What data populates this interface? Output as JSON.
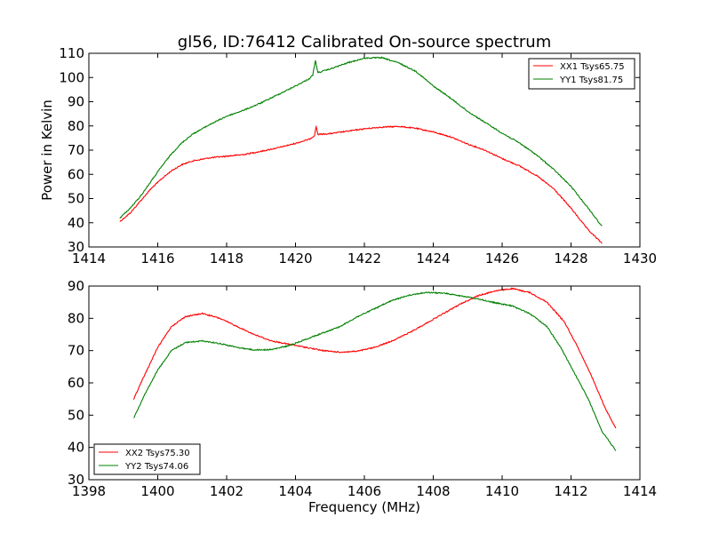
{
  "chart_data": [
    {
      "type": "line",
      "title": "gl56, ID:76412 Calibrated On-source spectrum",
      "xlabel": "",
      "ylabel": "Power in Kelvin",
      "xlim": [
        1414,
        1430
      ],
      "ylim": [
        30,
        110
      ],
      "xticks": [
        1414,
        1416,
        1418,
        1420,
        1422,
        1424,
        1426,
        1428,
        1430
      ],
      "yticks": [
        30,
        40,
        50,
        60,
        70,
        80,
        90,
        100,
        110
      ],
      "grid": false,
      "legend_position": "top-right",
      "series": [
        {
          "name": "XX1 Tsys65.75",
          "color": "#ff0000",
          "points": [
            [
              1414.9,
              40.5
            ],
            [
              1415.2,
              44
            ],
            [
              1415.5,
              49
            ],
            [
              1415.8,
              54
            ],
            [
              1416.1,
              58
            ],
            [
              1416.4,
              61.5
            ],
            [
              1416.7,
              64
            ],
            [
              1417,
              65.5
            ],
            [
              1417.5,
              66.8
            ],
            [
              1418,
              67.5
            ],
            [
              1418.5,
              68.2
            ],
            [
              1419,
              69.5
            ],
            [
              1419.5,
              71
            ],
            [
              1420,
              72.8
            ],
            [
              1420.4,
              74.5
            ],
            [
              1420.55,
              76
            ],
            [
              1420.6,
              79.8
            ],
            [
              1420.65,
              76.5
            ],
            [
              1421,
              76.8
            ],
            [
              1421.5,
              77.8
            ],
            [
              1422,
              78.8
            ],
            [
              1422.5,
              79.5
            ],
            [
              1423,
              79.8
            ],
            [
              1423.5,
              79
            ],
            [
              1424,
              77.5
            ],
            [
              1424.5,
              75.5
            ],
            [
              1425,
              72.5
            ],
            [
              1425.5,
              70
            ],
            [
              1426,
              66.5
            ],
            [
              1426.5,
              63.5
            ],
            [
              1427,
              59.5
            ],
            [
              1427.5,
              54
            ],
            [
              1428,
              46
            ],
            [
              1428.5,
              37
            ],
            [
              1428.9,
              31.5
            ]
          ]
        },
        {
          "name": "YY1 Tsys81.75",
          "color": "#008000",
          "points": [
            [
              1414.9,
              42
            ],
            [
              1415.2,
              46
            ],
            [
              1415.5,
              51
            ],
            [
              1415.8,
              57
            ],
            [
              1416.1,
              63
            ],
            [
              1416.4,
              68.5
            ],
            [
              1416.7,
              73
            ],
            [
              1417,
              76.5
            ],
            [
              1417.5,
              80.5
            ],
            [
              1418,
              84
            ],
            [
              1418.5,
              86.5
            ],
            [
              1419,
              89.5
            ],
            [
              1419.5,
              93
            ],
            [
              1420,
              96.5
            ],
            [
              1420.4,
              99.5
            ],
            [
              1420.5,
              101
            ],
            [
              1420.58,
              107
            ],
            [
              1420.65,
              102
            ],
            [
              1421,
              103.5
            ],
            [
              1421.5,
              106
            ],
            [
              1422,
              108
            ],
            [
              1422.5,
              108.2
            ],
            [
              1423,
              106
            ],
            [
              1423.5,
              102.5
            ],
            [
              1424,
              96.5
            ],
            [
              1424.5,
              91.5
            ],
            [
              1425,
              86
            ],
            [
              1425.5,
              81.5
            ],
            [
              1426,
              77
            ],
            [
              1426.5,
              73
            ],
            [
              1427,
              68
            ],
            [
              1427.5,
              62
            ],
            [
              1428,
              55
            ],
            [
              1428.5,
              46
            ],
            [
              1428.9,
              38.5
            ]
          ]
        }
      ]
    },
    {
      "type": "line",
      "title": "",
      "xlabel": "Frequency (MHz)",
      "ylabel": "",
      "xlim": [
        1398,
        1414
      ],
      "ylim": [
        30,
        90
      ],
      "xticks": [
        1398,
        1400,
        1402,
        1404,
        1406,
        1408,
        1410,
        1412,
        1414
      ],
      "yticks": [
        30,
        40,
        50,
        60,
        70,
        80,
        90
      ],
      "grid": false,
      "legend_position": "bottom-left",
      "series": [
        {
          "name": "XX2 Tsys75.30",
          "color": "#ff0000",
          "points": [
            [
              1399.3,
              55
            ],
            [
              1399.6,
              62
            ],
            [
              1400,
              71
            ],
            [
              1400.4,
              77.5
            ],
            [
              1400.8,
              80.5
            ],
            [
              1401.3,
              81.5
            ],
            [
              1401.8,
              80
            ],
            [
              1402.3,
              77.5
            ],
            [
              1402.8,
              75
            ],
            [
              1403.3,
              73
            ],
            [
              1403.8,
              72
            ],
            [
              1404.3,
              71
            ],
            [
              1404.8,
              70
            ],
            [
              1405.3,
              69.5
            ],
            [
              1405.8,
              69.8
            ],
            [
              1406.3,
              71
            ],
            [
              1406.8,
              73
            ],
            [
              1407.3,
              75.5
            ],
            [
              1407.8,
              78.5
            ],
            [
              1408.3,
              81.5
            ],
            [
              1408.8,
              84.5
            ],
            [
              1409.3,
              87
            ],
            [
              1409.8,
              88.5
            ],
            [
              1410.3,
              89.2
            ],
            [
              1410.8,
              88
            ],
            [
              1411.3,
              85
            ],
            [
              1411.8,
              79
            ],
            [
              1412.2,
              71
            ],
            [
              1412.6,
              62
            ],
            [
              1413,
              52
            ],
            [
              1413.3,
              46
            ]
          ]
        },
        {
          "name": "YY2 Tsys74.06",
          "color": "#008000",
          "points": [
            [
              1399.3,
              49
            ],
            [
              1399.6,
              56
            ],
            [
              1400,
              64
            ],
            [
              1400.4,
              70
            ],
            [
              1400.8,
              72.5
            ],
            [
              1401.3,
              73
            ],
            [
              1401.8,
              72.2
            ],
            [
              1402.3,
              71
            ],
            [
              1402.8,
              70.2
            ],
            [
              1403.3,
              70.3
            ],
            [
              1403.8,
              71.5
            ],
            [
              1404.3,
              73.5
            ],
            [
              1404.8,
              75.5
            ],
            [
              1405.3,
              77.5
            ],
            [
              1405.8,
              80.5
            ],
            [
              1406.3,
              83
            ],
            [
              1406.8,
              85.5
            ],
            [
              1407.3,
              87.2
            ],
            [
              1407.8,
              88
            ],
            [
              1408.3,
              87.8
            ],
            [
              1408.8,
              87
            ],
            [
              1409.3,
              86
            ],
            [
              1409.8,
              84.8
            ],
            [
              1410.3,
              83.8
            ],
            [
              1410.8,
              81.5
            ],
            [
              1411.3,
              77.5
            ],
            [
              1411.7,
              71
            ],
            [
              1412.1,
              63
            ],
            [
              1412.5,
              55
            ],
            [
              1412.9,
              45
            ],
            [
              1413.3,
              39
            ]
          ]
        }
      ]
    }
  ]
}
